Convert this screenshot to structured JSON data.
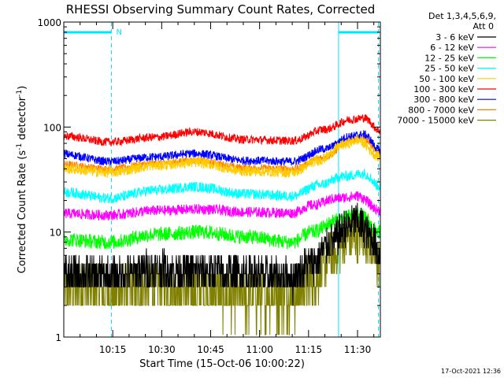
{
  "chart_data": {
    "type": "line",
    "title": "RHESSI Observing Summary Count Rates, Corrected",
    "xlabel": "Start Time (15-Oct-06 10:00:22)",
    "ylabel_main": "Corrected Count Rate (s",
    "ylabel_sup1": "-1",
    "ylabel_mid": " detector",
    "ylabel_sup2": "-1",
    "ylabel_end": ")",
    "x_range_minutes": [
      0,
      97
    ],
    "ylim": [
      1,
      1000
    ],
    "y_scale": "log",
    "y_ticks": [
      {
        "value": 1,
        "label": "1"
      },
      {
        "value": 10,
        "label": "10"
      },
      {
        "value": 100,
        "label": "100"
      },
      {
        "value": 1000,
        "label": "1000"
      }
    ],
    "x_ticks": [
      {
        "minute": 15,
        "label": "10:15"
      },
      {
        "minute": 30,
        "label": "10:30"
      },
      {
        "minute": 45,
        "label": "10:45"
      },
      {
        "minute": 60,
        "label": "11:00"
      },
      {
        "minute": 75,
        "label": "11:15"
      },
      {
        "minute": 90,
        "label": "11:30"
      }
    ],
    "legend_header": [
      "Det 1,3,4,5,6,9,",
      "Att 0"
    ],
    "legend_placement": "right",
    "night_marker_label": "N",
    "night_intervals": [
      [
        0,
        14.6
      ],
      [
        84.2,
        96.4
      ]
    ],
    "night_color": "#00e5ff",
    "series": [
      {
        "name": "3 - 6 keV",
        "color": "#000000",
        "profile": [
          [
            0,
            4
          ],
          [
            14,
            3.8
          ],
          [
            28,
            4.5
          ],
          [
            42,
            4.2
          ],
          [
            56,
            4
          ],
          [
            70,
            3.7
          ],
          [
            76,
            5
          ],
          [
            82,
            8
          ],
          [
            86,
            11
          ],
          [
            90,
            12.5
          ],
          [
            94,
            9
          ],
          [
            97,
            6
          ]
        ],
        "noise": 0.18
      },
      {
        "name": "6 - 12 keV",
        "color": "#ff00ff",
        "profile": [
          [
            0,
            15
          ],
          [
            14,
            14.5
          ],
          [
            28,
            16
          ],
          [
            42,
            16.5
          ],
          [
            56,
            15.5
          ],
          [
            70,
            15.2
          ],
          [
            76,
            18
          ],
          [
            84,
            21
          ],
          [
            90,
            22
          ],
          [
            97,
            16
          ]
        ],
        "noise": 0.05
      },
      {
        "name": "12 - 25 keV",
        "color": "#00ff00",
        "profile": [
          [
            0,
            8.5
          ],
          [
            14,
            8
          ],
          [
            28,
            9.5
          ],
          [
            42,
            10
          ],
          [
            56,
            9
          ],
          [
            70,
            8
          ],
          [
            76,
            10
          ],
          [
            84,
            13
          ],
          [
            90,
            15
          ],
          [
            97,
            10
          ]
        ],
        "noise": 0.07
      },
      {
        "name": "25 - 50 keV",
        "color": "#00ffff",
        "profile": [
          [
            0,
            24
          ],
          [
            14,
            21
          ],
          [
            28,
            25
          ],
          [
            40,
            27
          ],
          [
            56,
            23
          ],
          [
            70,
            22
          ],
          [
            78,
            28
          ],
          [
            86,
            34
          ],
          [
            92,
            36
          ],
          [
            97,
            27
          ]
        ],
        "noise": 0.05
      },
      {
        "name": "50 - 100 keV",
        "color": "#ffcc00",
        "profile": [
          [
            0,
            40
          ],
          [
            14,
            37
          ],
          [
            28,
            43
          ],
          [
            40,
            46
          ],
          [
            56,
            38
          ],
          [
            70,
            37
          ],
          [
            78,
            48
          ],
          [
            86,
            68
          ],
          [
            90,
            75
          ],
          [
            97,
            52
          ]
        ],
        "noise": 0.05
      },
      {
        "name": "100 - 300 keV",
        "color": "#ff0000",
        "profile": [
          [
            0,
            82
          ],
          [
            14,
            72
          ],
          [
            28,
            80
          ],
          [
            40,
            90
          ],
          [
            56,
            76
          ],
          [
            70,
            74
          ],
          [
            80,
            95
          ],
          [
            88,
            118
          ],
          [
            92,
            122
          ],
          [
            97,
            92
          ]
        ],
        "noise": 0.04
      },
      {
        "name": "300 - 800 keV",
        "color": "#0000ff",
        "profile": [
          [
            0,
            55
          ],
          [
            14,
            47
          ],
          [
            28,
            52
          ],
          [
            40,
            56
          ],
          [
            56,
            48
          ],
          [
            70,
            47
          ],
          [
            80,
            62
          ],
          [
            88,
            82
          ],
          [
            92,
            85
          ],
          [
            97,
            60
          ]
        ],
        "noise": 0.04
      },
      {
        "name": "800 - 7000 keV",
        "color": "#ff8000",
        "profile": [
          [
            0,
            44
          ],
          [
            14,
            40
          ],
          [
            28,
            45
          ],
          [
            40,
            48
          ],
          [
            56,
            41
          ],
          [
            70,
            40
          ],
          [
            80,
            52
          ],
          [
            88,
            75
          ],
          [
            92,
            78
          ],
          [
            97,
            55
          ]
        ],
        "noise": 0.035
      },
      {
        "name": "7000 - 15000 keV",
        "color": "#808000",
        "profile": [
          [
            0,
            3
          ],
          [
            14,
            2.8
          ],
          [
            28,
            3
          ],
          [
            42,
            2.7
          ],
          [
            56,
            2.4
          ],
          [
            70,
            2.5
          ],
          [
            76,
            3.5
          ],
          [
            82,
            6
          ],
          [
            88,
            9
          ],
          [
            92,
            9.5
          ],
          [
            97,
            5
          ]
        ],
        "noise": 0.25
      }
    ]
  },
  "footer_date": "17-Oct-2021 12:36"
}
